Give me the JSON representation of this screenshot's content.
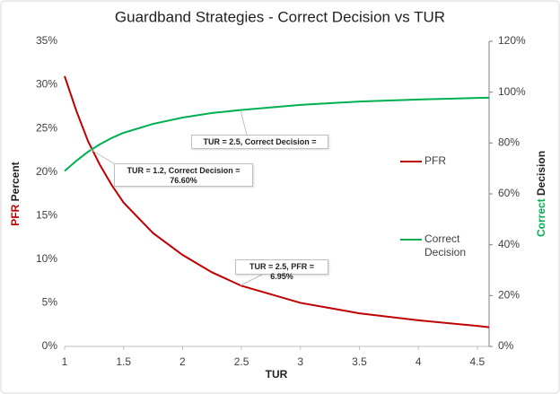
{
  "chart_data": {
    "type": "line",
    "title": "Guardband Strategies - Correct Decision vs TUR",
    "xlabel": "TUR",
    "ylabel": [
      "PFR",
      "Percent"
    ],
    "y2label": [
      "Correct",
      "Decision"
    ],
    "x": [
      1,
      1.1,
      1.2,
      1.3,
      1.4,
      1.5,
      1.75,
      2,
      2.25,
      2.5,
      3,
      3.5,
      4,
      4.5,
      4.6
    ],
    "series": [
      {
        "name": "PFR",
        "color": "#c00000",
        "axis": "y",
        "values": [
          31,
          27,
          23.5,
          20.8,
          18.5,
          16.5,
          13,
          10.5,
          8.5,
          6.95,
          5,
          3.8,
          3,
          2.35,
          2.2
        ]
      },
      {
        "name": "Correct Decision",
        "color": "#00b050",
        "axis": "y2",
        "values": [
          69,
          73,
          76.6,
          79.5,
          82,
          84,
          87.5,
          90,
          91.8,
          93,
          95,
          96.3,
          97.1,
          97.7,
          97.8
        ]
      }
    ],
    "xlim": [
      1,
      4.6
    ],
    "xticks": [
      1,
      1.5,
      2,
      2.5,
      3,
      3.5,
      4,
      4.5
    ],
    "ylim": [
      0,
      35
    ],
    "yticks": [
      {
        "value": 0,
        "label": "0%"
      },
      {
        "value": 5,
        "label": "5%"
      },
      {
        "value": 10,
        "label": "10%"
      },
      {
        "value": 15,
        "label": "15%"
      },
      {
        "value": 20,
        "label": "20%"
      },
      {
        "value": 25,
        "label": "25%"
      },
      {
        "value": 30,
        "label": "30%"
      },
      {
        "value": 35,
        "label": "35%"
      }
    ],
    "y2lim": [
      0,
      120
    ],
    "y2ticks": [
      {
        "value": 0,
        "label": "0%"
      },
      {
        "value": 20,
        "label": "20%"
      },
      {
        "value": 40,
        "label": "40%"
      },
      {
        "value": 60,
        "label": "60%"
      },
      {
        "value": 80,
        "label": "80%"
      },
      {
        "value": 100,
        "label": "100%"
      },
      {
        "value": 120,
        "label": "120%"
      }
    ],
    "annotations": [
      {
        "lines": [
          "TUR = 2.5, Correct Decision ="
        ]
      },
      {
        "lines": [
          "TUR = 1.2, Correct Decision =",
          "76.60%"
        ]
      },
      {
        "lines": [
          "TUR = 2.5, PFR = 6.95%"
        ]
      }
    ]
  }
}
